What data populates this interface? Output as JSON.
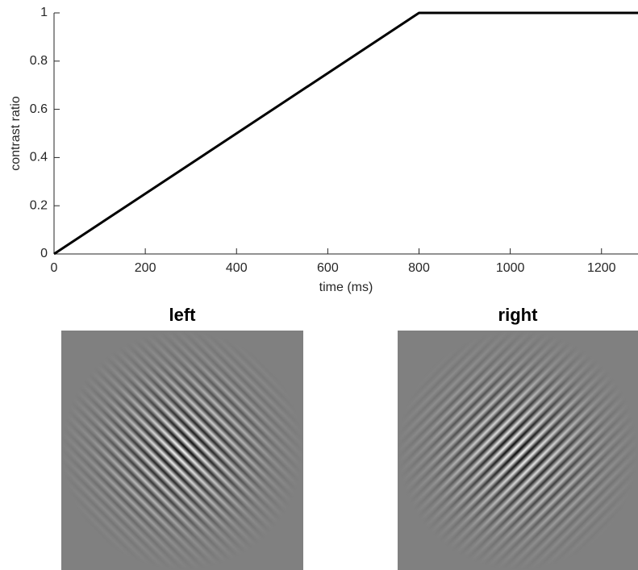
{
  "chart_data": {
    "type": "line",
    "xlabel": "time (ms)",
    "ylabel": "contrast ratio",
    "x": [
      0,
      800,
      1280
    ],
    "values": [
      0,
      1,
      1
    ],
    "color": "#000000",
    "xlim": [
      0,
      1280
    ],
    "ylim": [
      0,
      1
    ],
    "xticks": [
      0,
      200,
      400,
      600,
      800,
      1000,
      1200
    ],
    "yticks": [
      0,
      0.2,
      0.4,
      0.6,
      0.8,
      1
    ]
  },
  "images": [
    {
      "title": "left"
    },
    {
      "title": "right"
    }
  ]
}
